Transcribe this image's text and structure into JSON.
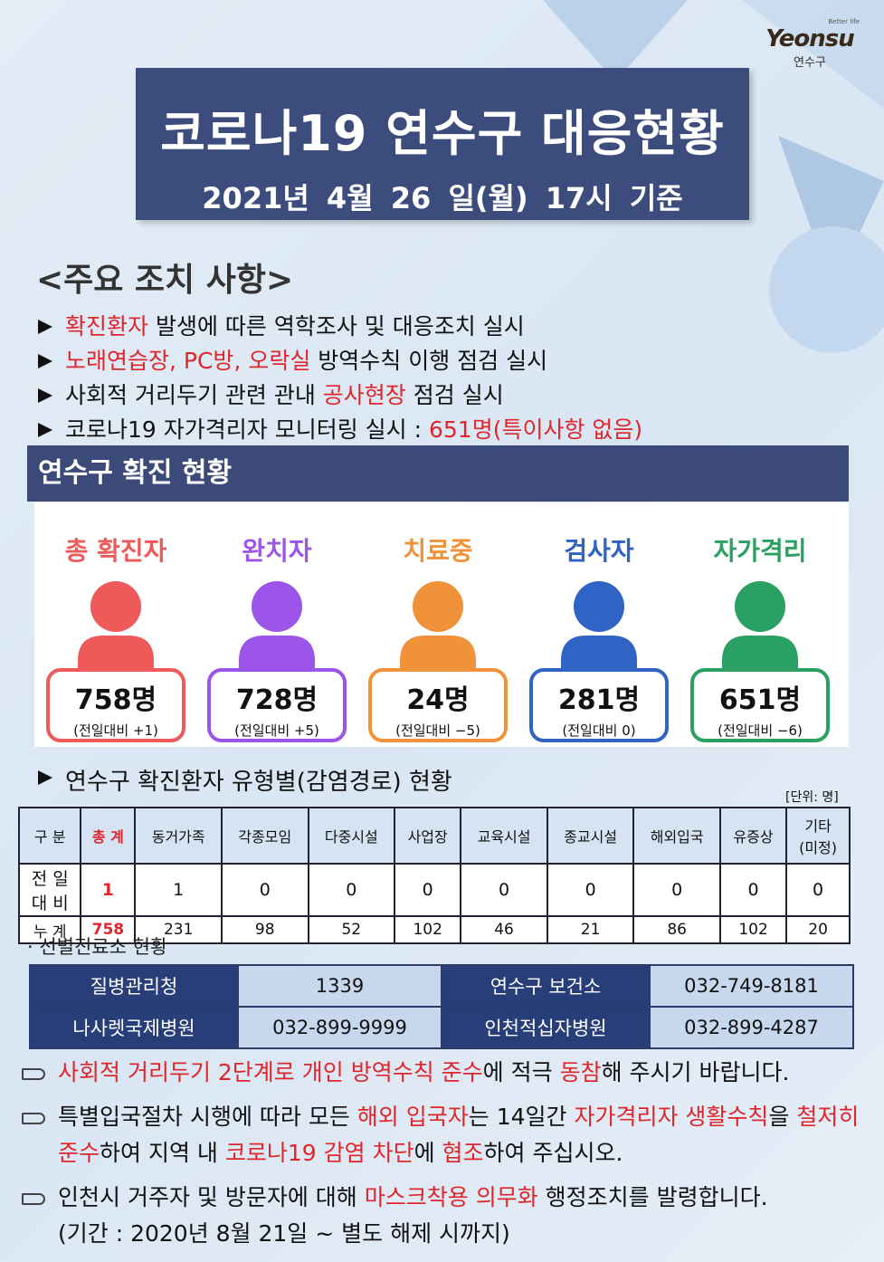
{
  "logo": {
    "tagline": "Better life",
    "brand": "Yeonsu",
    "district": "연수구"
  },
  "header": {
    "title": "코로나19 연수구 대응현황",
    "date": "2021년 4월 26 일(월) 17시 기준"
  },
  "measures": {
    "heading": "<주요 조치 사항>",
    "items": [
      [
        {
          "text": "확진환자",
          "highlight": true
        },
        {
          "text": " 발생에 따른 역학조사 및 대응조치 실시"
        }
      ],
      [
        {
          "text": "노래연습장, PC방, 오락실",
          "highlight": true
        },
        {
          "text": " 방역수칙 이행 점검 실시"
        }
      ],
      [
        {
          "text": "사회적 거리두기 관련 관내 "
        },
        {
          "text": "공사현장",
          "highlight": true
        },
        {
          "text": " 점검 실시"
        }
      ],
      [
        {
          "text": "코로나19 자가격리자 모니터링 실시 : "
        },
        {
          "text": "651명(특이사항 없음)",
          "highlight": true
        }
      ]
    ]
  },
  "status": {
    "heading": "연수구 확진 현황",
    "cards": [
      {
        "label": "총 확진자",
        "count": "758명",
        "change": "(전일대비 +1)",
        "color": "#ee5a5a"
      },
      {
        "label": "완치자",
        "count": "728명",
        "change": "(전일대비 +5)",
        "color": "#9b55e8"
      },
      {
        "label": "치료중",
        "count": "24명",
        "change": "(전일대비 −5)",
        "color": "#f0923a"
      },
      {
        "label": "검사자",
        "count": "281명",
        "change": "(전일대비 0)",
        "color": "#2f63c4"
      },
      {
        "label": "자가격리",
        "count": "651명",
        "change": "(전일대비 −6)",
        "color": "#2aa163"
      }
    ]
  },
  "types": {
    "heading": "연수구 확진환자 유형별(감염경로) 현황",
    "unit": "[단위: 명]",
    "table": {
      "header": [
        "구 분",
        "총 계",
        "동거가족",
        "각종모임",
        "다중시설",
        "사업장",
        "교육시설",
        "종교시설",
        "해외입국",
        "유증상",
        "기타\n(미정)"
      ],
      "rows": [
        [
          "전 일\n대 비",
          1,
          1,
          0,
          0,
          0,
          0,
          0,
          0,
          0,
          0
        ],
        [
          "누 계",
          758,
          231,
          98,
          52,
          102,
          46,
          21,
          86,
          102,
          20
        ]
      ]
    }
  },
  "clinics": {
    "heading": "· 선별진료소 현황",
    "rows": [
      [
        "질병관리청",
        "1339",
        "연수구 보건소",
        "032-749-8181"
      ],
      [
        "나사렛국제병원",
        "032-899-9999",
        "인천적십자병원",
        "032-899-4287"
      ]
    ]
  },
  "notices": [
    {
      "parts": [
        {
          "text": "사회적 거리두기 2단계로 개인 방역수칙 준수",
          "highlight": true
        },
        {
          "text": "에 적극 "
        },
        {
          "text": "동참",
          "highlight": true
        },
        {
          "text": "해 주시기 바랍니다."
        }
      ]
    },
    {
      "parts": [
        {
          "text": "특별입국절차 시행에 따라 모든 "
        },
        {
          "text": "해외 입국자",
          "highlight": true
        },
        {
          "text": "는 14일간 "
        },
        {
          "text": "자가격리자 생활수칙",
          "highlight": true
        },
        {
          "text": "을 "
        },
        {
          "text": "철저히 준수",
          "highlight": true
        },
        {
          "text": "하여 지역 내 "
        },
        {
          "text": "코로나19 감염 차단",
          "highlight": true
        },
        {
          "text": "에 "
        },
        {
          "text": "협조",
          "highlight": true
        },
        {
          "text": "하여 주십시오."
        }
      ]
    },
    {
      "parts": [
        {
          "text": "인천시 거주자 및 방문자에 대해 "
        },
        {
          "text": "마스크착용 의무화",
          "highlight": true
        },
        {
          "text": " 행정조치를 발령합니다."
        }
      ],
      "note": "(기간 : 2020년 8월 21일 ~ 별도 해제 시까지)"
    }
  ]
}
